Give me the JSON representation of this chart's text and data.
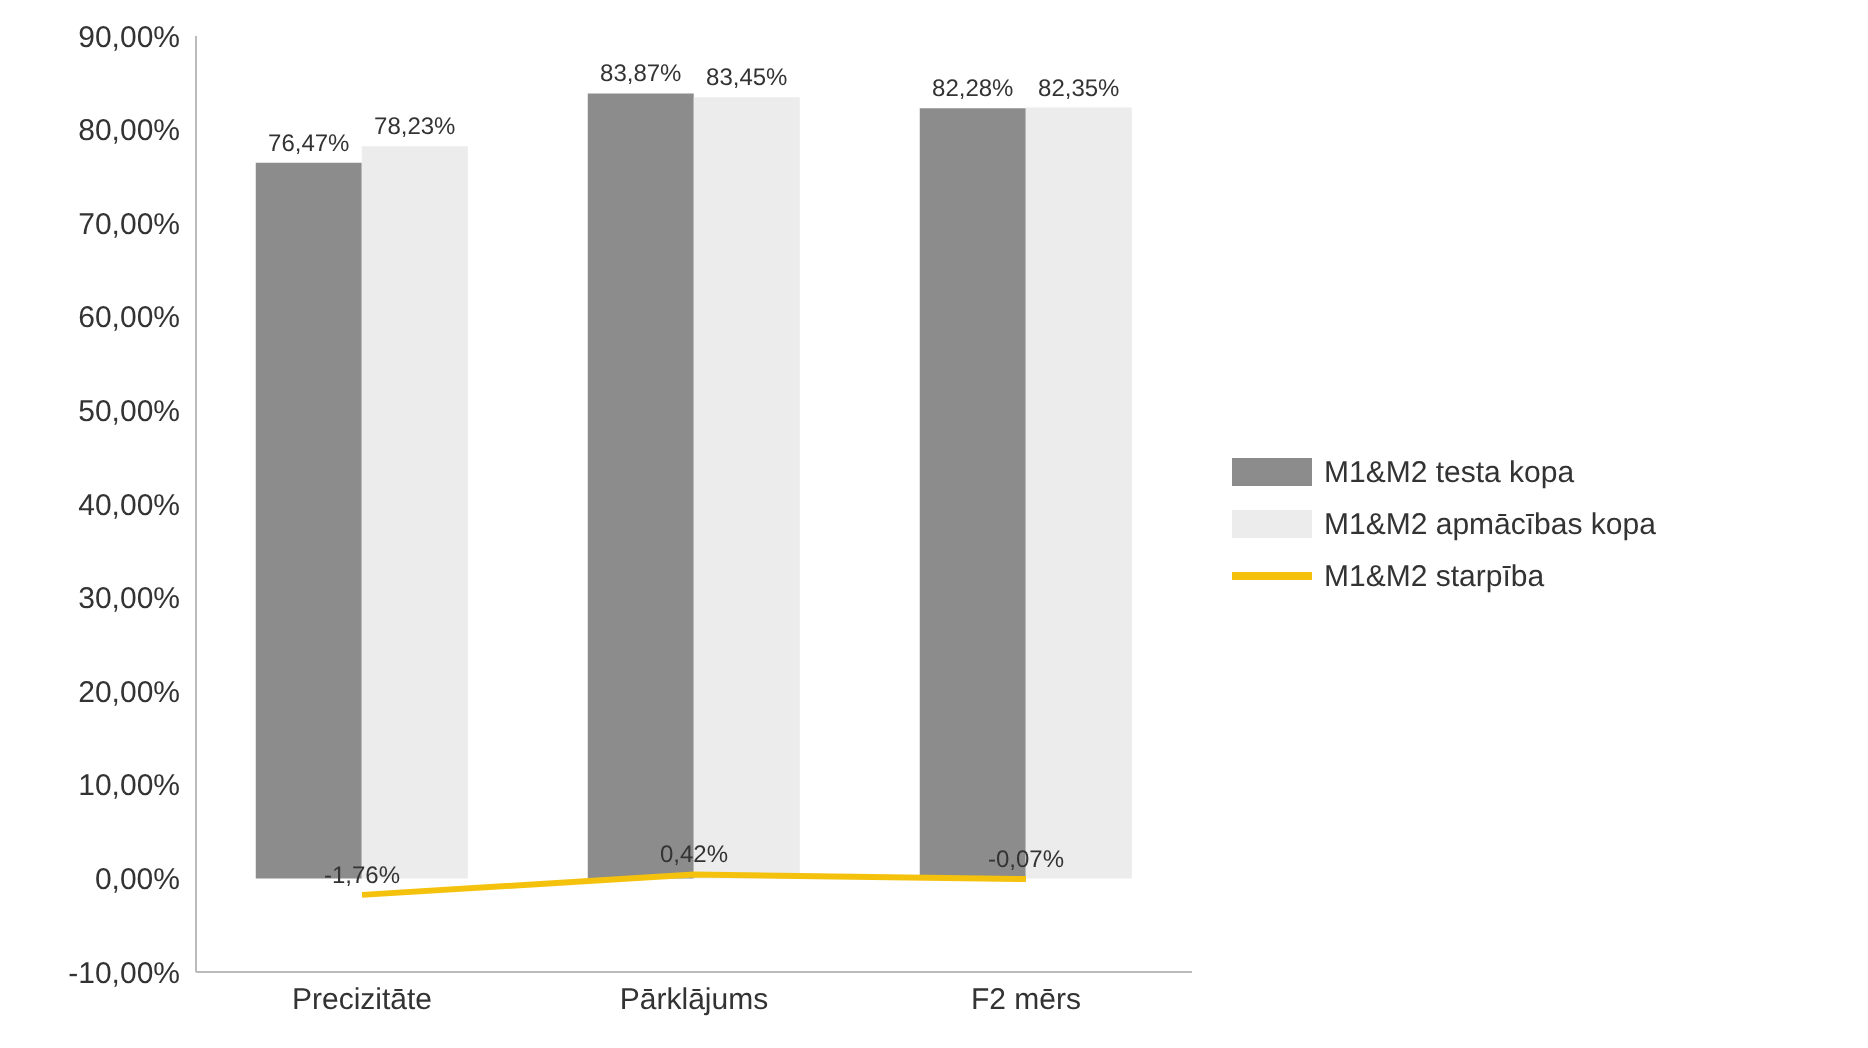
{
  "chart_data": {
    "type": "bar",
    "categories": [
      "Precizitāte",
      "Pārklājums",
      "F2 mērs"
    ],
    "series": [
      {
        "name": "M1&M2 testa kopa",
        "color": "#8c8c8c",
        "values": [
          76.47,
          83.87,
          82.28
        ],
        "value_labels": [
          "76,47%",
          "83,87%",
          "82,28%"
        ]
      },
      {
        "name": "M1&M2 apmācības kopa",
        "color": "#ececec",
        "values": [
          78.23,
          83.45,
          82.35
        ],
        "value_labels": [
          "78,23%",
          "83,45%",
          "82,35%"
        ]
      },
      {
        "name": "M1&M2 starpība",
        "type": "line",
        "color": "#f4c20d",
        "values": [
          -1.76,
          0.42,
          -0.07
        ],
        "value_labels": [
          "-1,76%",
          "0,42%",
          "-0,07%"
        ],
        "marker": "none",
        "line_style": "solid"
      }
    ],
    "ylim": [
      -10,
      90
    ],
    "yticks": [
      {
        "value": -10,
        "label": "-10,00%"
      },
      {
        "value": 0,
        "label": "0,00%"
      },
      {
        "value": 10,
        "label": "10,00%"
      },
      {
        "value": 20,
        "label": "20,00%"
      },
      {
        "value": 30,
        "label": "30,00%"
      },
      {
        "value": 40,
        "label": "40,00%"
      },
      {
        "value": 50,
        "label": "50,00%"
      },
      {
        "value": 60,
        "label": "60,00%"
      },
      {
        "value": 70,
        "label": "70,00%"
      },
      {
        "value": 80,
        "label": "80,00%"
      },
      {
        "value": 90,
        "label": "90,00%"
      }
    ],
    "grid": false,
    "legend": "right"
  }
}
